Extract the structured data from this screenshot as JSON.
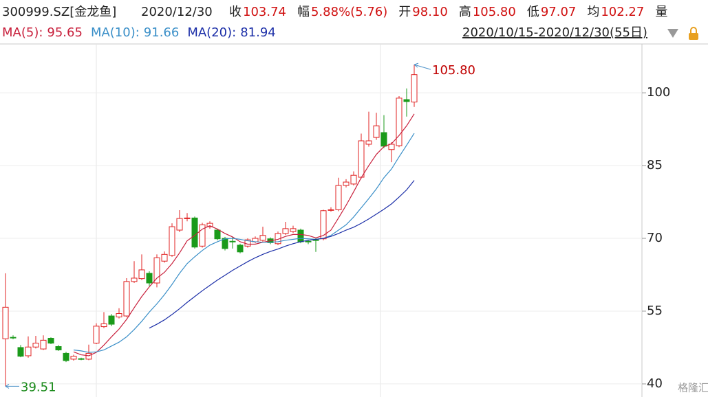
{
  "header": {
    "symbol": "300999.SZ[金龙鱼]",
    "date": "2020/12/30",
    "fields": [
      {
        "label": "收",
        "value": "103.74",
        "color": "#d01010"
      },
      {
        "label": "幅",
        "value": "5.88%(5.76)",
        "color": "#d01010"
      },
      {
        "label": "开",
        "value": "98.10",
        "color": "#d01010"
      },
      {
        "label": "高",
        "value": "105.80",
        "color": "#d01010"
      },
      {
        "label": "低",
        "value": "97.07",
        "color": "#d01010"
      },
      {
        "label": "均",
        "value": "102.27",
        "color": "#d01010"
      },
      {
        "label": "量",
        "value": null,
        "color": "#222222"
      }
    ],
    "range": "2020/10/15-2020/12/30(55日)"
  },
  "chart_data": {
    "type": "candlestick",
    "open": [
      49.3,
      49.6,
      47.5,
      45.8,
      47.6,
      47.2,
      49.4,
      47.7,
      46.3,
      45.1,
      45.2,
      45.1,
      48.4,
      51.8,
      54,
      53.8,
      54,
      61.1,
      61.7,
      62.8,
      60.8,
      65.3,
      66.5,
      71.7,
      74.2,
      74.2,
      68.4,
      72.4,
      71.7,
      70,
      69.4,
      68.6,
      68.4,
      69.3,
      69.6,
      69.9,
      68.9,
      71,
      71.4,
      71.7,
      69.4,
      69.7,
      69.9,
      75.8,
      75.9,
      80.9,
      81.2,
      82.6,
      89.4,
      90.8,
      91.8,
      88.3,
      89.1,
      98.6,
      98.1
    ],
    "high": [
      62.8,
      50,
      48,
      49.8,
      49.9,
      50,
      49.6,
      48,
      46.6,
      46,
      45.4,
      48.1,
      52.5,
      54.8,
      54.4,
      55.6,
      61.8,
      65.3,
      66.7,
      63.2,
      66.7,
      67.3,
      73.1,
      75.8,
      75.2,
      74.5,
      73.2,
      73.5,
      72,
      70.3,
      70.3,
      68.9,
      70,
      70.4,
      72.4,
      70.2,
      71.4,
      73.4,
      72.6,
      72,
      69.7,
      70,
      75.9,
      76.4,
      82.5,
      82.2,
      83.8,
      91.6,
      96.1,
      95.9,
      95.4,
      89.8,
      99.3,
      100.9,
      105.8
    ],
    "low": [
      39.51,
      49.2,
      45.5,
      45.4,
      47.3,
      47,
      48.2,
      46.8,
      44.5,
      44.8,
      44.9,
      44.9,
      48.2,
      51.5,
      51.9,
      53.5,
      53.8,
      60.8,
      61.4,
      60.2,
      59.9,
      65,
      66.2,
      71.3,
      73.5,
      67.9,
      68.1,
      72,
      69.6,
      67.5,
      67.9,
      66.9,
      68.1,
      69,
      69.3,
      68.8,
      68.6,
      70.7,
      71.1,
      69,
      68.8,
      67.2,
      69.6,
      75.5,
      75.6,
      80.5,
      80.9,
      82.3,
      88.9,
      90.3,
      88.6,
      85.7,
      88.8,
      95.1,
      97.07
    ],
    "close": [
      55.8,
      49.5,
      45.7,
      47.6,
      48.4,
      49,
      48.4,
      47,
      44.8,
      45.7,
      45.1,
      46.3,
      51.9,
      52.4,
      52.3,
      54.5,
      61.1,
      61.8,
      63.5,
      60.8,
      66,
      66.7,
      72.4,
      74.1,
      74.2,
      68.2,
      72.8,
      73.1,
      69.9,
      67.9,
      69.3,
      67.2,
      69.7,
      70,
      70.6,
      69.1,
      71,
      72,
      72,
      69.3,
      69.3,
      69.6,
      75.7,
      75.9,
      80.9,
      81.6,
      83,
      90.1,
      90.1,
      93.2,
      89,
      89.4,
      98.9,
      98.2,
      103.74
    ],
    "up_color": "#e02020",
    "down_color": "#1a9a1a",
    "series": [
      {
        "name": "MA(5):",
        "label": "95.65",
        "color": "#c8203c",
        "values": [
          null,
          null,
          null,
          null,
          null,
          null,
          null,
          null,
          null,
          46.6,
          46,
          45.8,
          46.5,
          48,
          49.7,
          51.3,
          53.3,
          55.7,
          58,
          60,
          61.8,
          63,
          64.8,
          67,
          69.5,
          70.6,
          71.9,
          72.6,
          71.9,
          71,
          70.3,
          69.3,
          68.8,
          68.8,
          69.2,
          69.5,
          69.8,
          70.4,
          70.8,
          70.8,
          70.6,
          70.1,
          70.6,
          71.7,
          74.2,
          76.8,
          79.6,
          82.5,
          85,
          87.3,
          88.9,
          89.5,
          91.2,
          93.2,
          95.65
        ]
      },
      {
        "name": "MA(10):",
        "label": "91.66",
        "color": "#3a8fc8",
        "values": [
          null,
          null,
          null,
          null,
          null,
          null,
          null,
          null,
          null,
          47,
          46.8,
          46.5,
          46.6,
          47,
          47.8,
          48.6,
          49.7,
          51.2,
          52.9,
          54.8,
          56.5,
          58.4,
          60.5,
          62.8,
          64.8,
          66.2,
          67.5,
          68.6,
          69.3,
          69.9,
          70,
          69.8,
          69.5,
          69.3,
          69.2,
          69.2,
          69.3,
          69.6,
          69.8,
          70,
          69.9,
          69.8,
          70,
          70.6,
          71.7,
          72.8,
          74.4,
          76.3,
          78.2,
          80.2,
          82.5,
          84.3,
          86.8,
          89.2,
          91.66
        ]
      },
      {
        "name": "MA(20):",
        "label": "81.94",
        "color": "#1c2fa8",
        "values": [
          null,
          null,
          null,
          null,
          null,
          null,
          null,
          null,
          null,
          null,
          null,
          null,
          null,
          null,
          null,
          null,
          null,
          null,
          null,
          51.5,
          52.3,
          53.2,
          54.3,
          55.5,
          56.8,
          58,
          59.2,
          60.3,
          61.4,
          62.4,
          63.4,
          64.3,
          65.2,
          66,
          66.7,
          67.3,
          67.8,
          68.4,
          68.9,
          69.3,
          69.6,
          69.8,
          70,
          70.4,
          71,
          71.7,
          72.3,
          73.1,
          74,
          75,
          76,
          77.1,
          78.5,
          80,
          81.94
        ]
      }
    ],
    "ylim": [
      37.3,
      109.5
    ],
    "yticks": [
      100,
      85,
      70,
      55,
      40
    ],
    "grid": true,
    "annotations": [
      {
        "text": "105.80",
        "color": "#c00000"
      },
      {
        "text": "39.51",
        "color": "#1a8a1a"
      }
    ]
  },
  "watermark": "格隆汇"
}
